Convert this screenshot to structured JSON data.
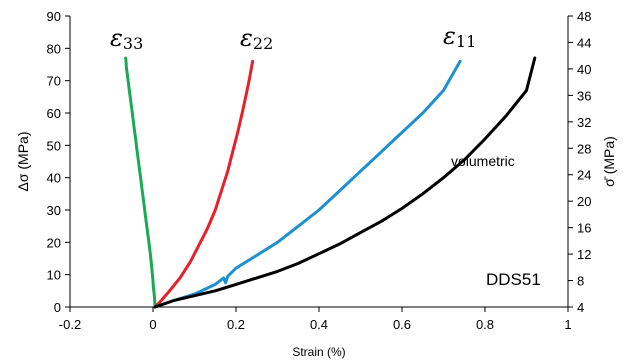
{
  "chart_data": {
    "type": "line",
    "xlabel": "Strain (%)",
    "ylabel": "Δσ (MPa)",
    "y2label": "σ̄ (MPa)",
    "xlim": [
      -0.2,
      1
    ],
    "ylim": [
      0,
      90
    ],
    "y2lim": [
      4,
      48
    ],
    "x_ticks": [
      "-0.2",
      "0",
      "0.2",
      "0.4",
      "0.6",
      "0.8",
      "1"
    ],
    "y_ticks": [
      "0",
      "10",
      "20",
      "30",
      "40",
      "50",
      "60",
      "70",
      "80",
      "90"
    ],
    "y2_ticks": [
      "4",
      "8",
      "12",
      "16",
      "20",
      "24",
      "28",
      "32",
      "36",
      "40",
      "44",
      "48"
    ],
    "grid": false,
    "annotations": {
      "specimen": "DDS51",
      "volumetric": "volumetric"
    },
    "series": [
      {
        "name": "ε33",
        "symbol": "ε",
        "sub": "33",
        "color": "#1aaa55",
        "points": [
          [
            0.005,
            0
          ],
          [
            0.004,
            2
          ],
          [
            0.003,
            4
          ],
          [
            0.001,
            6
          ],
          [
            0.0,
            8
          ],
          [
            -0.003,
            12
          ],
          [
            -0.006,
            16
          ],
          [
            -0.01,
            20
          ],
          [
            -0.014,
            24
          ],
          [
            -0.018,
            28
          ],
          [
            -0.022,
            32
          ],
          [
            -0.026,
            36
          ],
          [
            -0.03,
            40
          ],
          [
            -0.034,
            44
          ],
          [
            -0.038,
            48
          ],
          [
            -0.042,
            52
          ],
          [
            -0.046,
            56
          ],
          [
            -0.05,
            60
          ],
          [
            -0.054,
            64
          ],
          [
            -0.058,
            68
          ],
          [
            -0.062,
            72
          ],
          [
            -0.064,
            74
          ],
          [
            -0.065,
            76
          ],
          [
            -0.066,
            77
          ]
        ]
      },
      {
        "name": "ε22",
        "symbol": "ε",
        "sub": "22",
        "color": "#e8202a",
        "points": [
          [
            0.005,
            0
          ],
          [
            0.02,
            2
          ],
          [
            0.04,
            5
          ],
          [
            0.065,
            9
          ],
          [
            0.09,
            14
          ],
          [
            0.11,
            19
          ],
          [
            0.13,
            24
          ],
          [
            0.15,
            30
          ],
          [
            0.165,
            36
          ],
          [
            0.18,
            42
          ],
          [
            0.192,
            48
          ],
          [
            0.204,
            54
          ],
          [
            0.215,
            60
          ],
          [
            0.225,
            66
          ],
          [
            0.233,
            71
          ],
          [
            0.24,
            76
          ]
        ]
      },
      {
        "name": "ε11",
        "symbol": "ε",
        "sub": "11",
        "color": "#1e90d0",
        "points": [
          [
            0.005,
            0
          ],
          [
            0.05,
            2
          ],
          [
            0.1,
            4
          ],
          [
            0.15,
            7
          ],
          [
            0.17,
            9
          ],
          [
            0.175,
            7.5
          ],
          [
            0.18,
            9.5
          ],
          [
            0.2,
            12
          ],
          [
            0.25,
            16
          ],
          [
            0.3,
            20
          ],
          [
            0.35,
            25
          ],
          [
            0.4,
            30
          ],
          [
            0.45,
            36
          ],
          [
            0.5,
            42
          ],
          [
            0.55,
            48
          ],
          [
            0.6,
            54
          ],
          [
            0.65,
            60
          ],
          [
            0.7,
            67
          ],
          [
            0.74,
            76
          ]
        ]
      },
      {
        "name": "volumetric",
        "color": "#000000",
        "points": [
          [
            0.005,
            0
          ],
          [
            0.05,
            2
          ],
          [
            0.1,
            3.5
          ],
          [
            0.15,
            5
          ],
          [
            0.2,
            7
          ],
          [
            0.25,
            9
          ],
          [
            0.3,
            11
          ],
          [
            0.35,
            13.5
          ],
          [
            0.4,
            16.5
          ],
          [
            0.45,
            19.5
          ],
          [
            0.5,
            23
          ],
          [
            0.55,
            26.5
          ],
          [
            0.6,
            30.5
          ],
          [
            0.65,
            35
          ],
          [
            0.7,
            40
          ],
          [
            0.75,
            45.5
          ],
          [
            0.8,
            52
          ],
          [
            0.85,
            59
          ],
          [
            0.9,
            67
          ],
          [
            0.92,
            77
          ]
        ]
      }
    ]
  }
}
